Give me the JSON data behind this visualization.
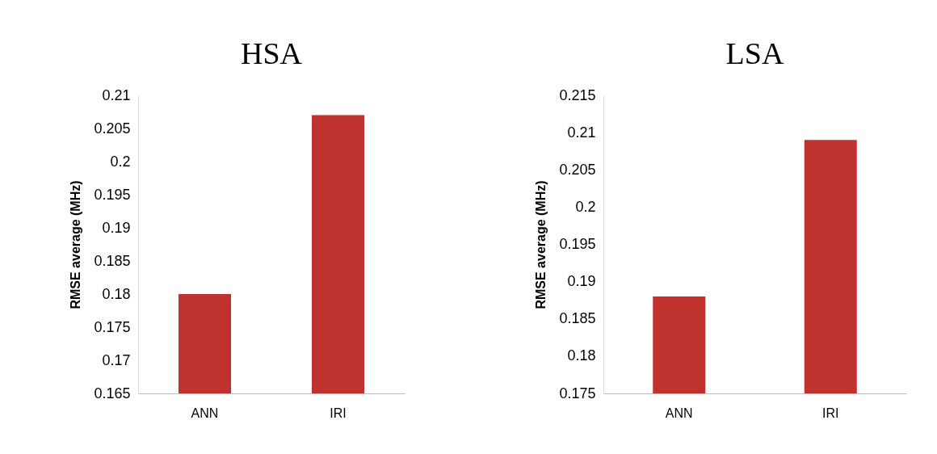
{
  "chart_data": [
    {
      "type": "bar",
      "title": "HSA",
      "ylabel": "RMSE average (MHz)",
      "categories": [
        "ANN",
        "IRI"
      ],
      "values": [
        0.18,
        0.207
      ],
      "color": "#c0322d",
      "ylim": [
        0.165,
        0.21
      ],
      "yticks": [
        0.165,
        0.17,
        0.175,
        0.18,
        0.185,
        0.19,
        0.195,
        0.2,
        0.205,
        0.21
      ],
      "grid": false
    },
    {
      "type": "bar",
      "title": "LSA",
      "ylabel": "RMSE average (MHz)",
      "categories": [
        "ANN",
        "IRI"
      ],
      "values": [
        0.188,
        0.209
      ],
      "color": "#c0322d",
      "ylim": [
        0.175,
        0.215
      ],
      "yticks": [
        0.175,
        0.18,
        0.185,
        0.19,
        0.195,
        0.2,
        0.205,
        0.21,
        0.215
      ],
      "grid": false
    }
  ]
}
